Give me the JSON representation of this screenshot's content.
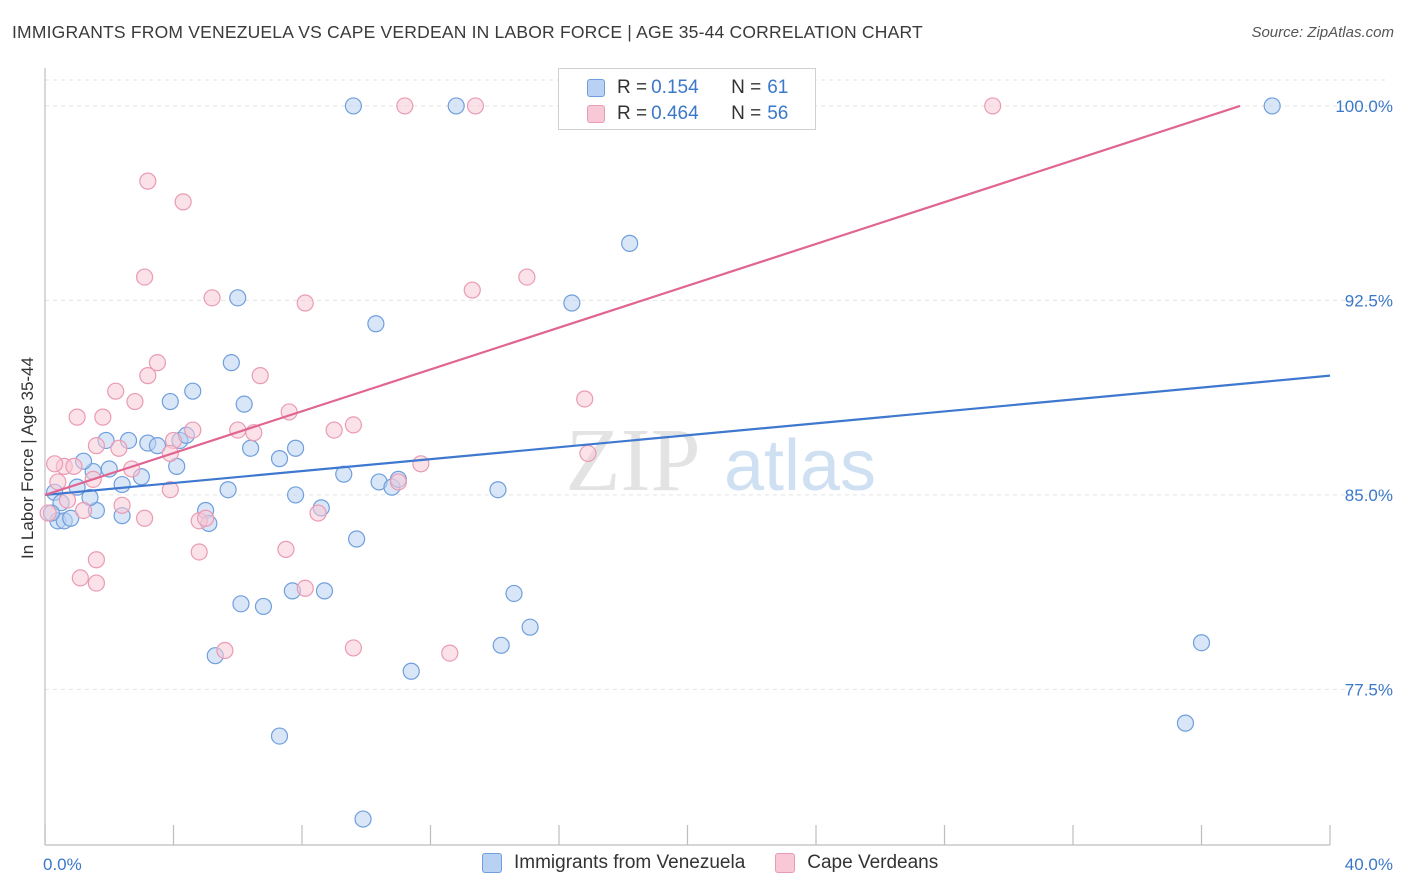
{
  "title": "IMMIGRANTS FROM VENEZUELA VS CAPE VERDEAN IN LABOR FORCE | AGE 35-44 CORRELATION CHART",
  "source": "Source: ZipAtlas.com",
  "watermark": {
    "zip": "ZIP",
    "atlas": "atlas"
  },
  "legend": {
    "rows": [
      {
        "r_label": "R = ",
        "r_value": "0.154",
        "n_label": "N = ",
        "n_value": "61"
      },
      {
        "r_label": "R = ",
        "r_value": "0.464",
        "n_label": "N = ",
        "n_value": "56"
      }
    ]
  },
  "chart_data": {
    "type": "scatter",
    "title": "IMMIGRANTS FROM VENEZUELA VS CAPE VERDEAN IN LABOR FORCE | AGE 35-44 CORRELATION CHART",
    "xlabel": "",
    "ylabel": "In Labor Force | Age 35-44",
    "xlim": [
      0,
      40
    ],
    "ylim": [
      71.5,
      101
    ],
    "x_tick_labels": [
      "0.0%",
      "40.0%"
    ],
    "y_ticks": [
      77.5,
      85.0,
      92.5,
      100.0
    ],
    "y_tick_labels": [
      "77.5%",
      "85.0%",
      "92.5%",
      "100.0%"
    ],
    "grid": true,
    "legend_position": "top-center",
    "series": [
      {
        "name": "Immigrants from Venezuela",
        "color": "#6f9fdc",
        "fill": "#b9d1f2",
        "trend": {
          "x": [
            0,
            40
          ],
          "y": [
            85.0,
            89.6
          ]
        },
        "points": [
          [
            0.4,
            84.0
          ],
          [
            0.6,
            84.0
          ],
          [
            0.3,
            85.1
          ],
          [
            1.0,
            85.3
          ],
          [
            1.5,
            85.9
          ],
          [
            1.2,
            86.3
          ],
          [
            1.6,
            84.4
          ],
          [
            1.9,
            87.1
          ],
          [
            2.6,
            87.1
          ],
          [
            2.4,
            85.4
          ],
          [
            2.4,
            84.2
          ],
          [
            3.2,
            87.0
          ],
          [
            3.5,
            86.9
          ],
          [
            4.2,
            87.1
          ],
          [
            4.1,
            86.1
          ],
          [
            3.9,
            88.6
          ],
          [
            4.6,
            89.0
          ],
          [
            5.0,
            84.4
          ],
          [
            5.1,
            83.9
          ],
          [
            5.7,
            85.2
          ],
          [
            5.8,
            90.1
          ],
          [
            6.2,
            88.5
          ],
          [
            6.0,
            92.6
          ],
          [
            6.4,
            86.8
          ],
          [
            7.3,
            86.4
          ],
          [
            7.8,
            86.8
          ],
          [
            8.6,
            84.5
          ],
          [
            9.3,
            85.8
          ],
          [
            9.7,
            83.3
          ],
          [
            10.3,
            91.6
          ],
          [
            10.4,
            85.5
          ],
          [
            10.8,
            85.3
          ],
          [
            5.3,
            78.8
          ],
          [
            6.1,
            80.8
          ],
          [
            6.8,
            80.7
          ],
          [
            7.7,
            81.3
          ],
          [
            8.7,
            81.3
          ],
          [
            7.3,
            75.7
          ],
          [
            11.4,
            78.2
          ],
          [
            14.1,
            85.2
          ],
          [
            14.6,
            81.2
          ],
          [
            14.2,
            79.2
          ],
          [
            15.1,
            79.9
          ],
          [
            16.4,
            92.4
          ],
          [
            18.2,
            94.7
          ],
          [
            9.6,
            100.0
          ],
          [
            12.8,
            100.0
          ],
          [
            21.9,
            100.0
          ],
          [
            36.0,
            79.3
          ],
          [
            35.5,
            76.2
          ],
          [
            38.2,
            100.0
          ],
          [
            9.9,
            72.5
          ],
          [
            0.5,
            84.7
          ],
          [
            2.0,
            86.0
          ],
          [
            1.4,
            84.9
          ],
          [
            3.0,
            85.7
          ],
          [
            4.4,
            87.3
          ],
          [
            7.8,
            85.0
          ],
          [
            11.0,
            85.6
          ],
          [
            0.2,
            84.3
          ],
          [
            0.8,
            84.1
          ]
        ]
      },
      {
        "name": "Cape Verdeans",
        "color": "#ea9bb4",
        "fill": "#f8c8d6",
        "trend": {
          "x": [
            0,
            37.2
          ],
          "y": [
            85.0,
            100.0
          ]
        },
        "points": [
          [
            0.1,
            84.3
          ],
          [
            0.4,
            85.5
          ],
          [
            0.6,
            86.1
          ],
          [
            0.9,
            86.1
          ],
          [
            1.0,
            88.0
          ],
          [
            1.2,
            84.4
          ],
          [
            1.5,
            85.6
          ],
          [
            1.6,
            86.9
          ],
          [
            1.8,
            88.0
          ],
          [
            2.2,
            89.0
          ],
          [
            2.4,
            84.6
          ],
          [
            2.7,
            86.0
          ],
          [
            2.8,
            88.6
          ],
          [
            3.1,
            84.1
          ],
          [
            3.2,
            89.6
          ],
          [
            3.5,
            90.1
          ],
          [
            3.9,
            85.2
          ],
          [
            4.0,
            87.1
          ],
          [
            4.6,
            87.5
          ],
          [
            4.8,
            84.0
          ],
          [
            5.0,
            84.1
          ],
          [
            5.2,
            92.6
          ],
          [
            6.0,
            87.5
          ],
          [
            6.5,
            87.4
          ],
          [
            6.7,
            89.6
          ],
          [
            7.6,
            88.2
          ],
          [
            8.1,
            92.4
          ],
          [
            8.5,
            84.3
          ],
          [
            9.0,
            87.5
          ],
          [
            9.6,
            87.7
          ],
          [
            11.0,
            85.5
          ],
          [
            11.7,
            86.2
          ],
          [
            13.3,
            92.9
          ],
          [
            15.0,
            93.4
          ],
          [
            16.9,
            86.6
          ],
          [
            16.8,
            88.7
          ],
          [
            3.2,
            97.1
          ],
          [
            4.3,
            96.3
          ],
          [
            3.1,
            93.4
          ],
          [
            1.6,
            82.5
          ],
          [
            1.1,
            81.8
          ],
          [
            1.6,
            81.6
          ],
          [
            4.8,
            82.8
          ],
          [
            7.5,
            82.9
          ],
          [
            8.1,
            81.4
          ],
          [
            9.6,
            79.1
          ],
          [
            12.6,
            78.9
          ],
          [
            5.6,
            79.0
          ],
          [
            11.2,
            100.0
          ],
          [
            13.4,
            100.0
          ],
          [
            22.0,
            100.0
          ],
          [
            29.5,
            100.0
          ],
          [
            0.3,
            86.2
          ],
          [
            0.7,
            84.8
          ],
          [
            2.3,
            86.8
          ],
          [
            3.9,
            86.6
          ]
        ]
      }
    ]
  }
}
